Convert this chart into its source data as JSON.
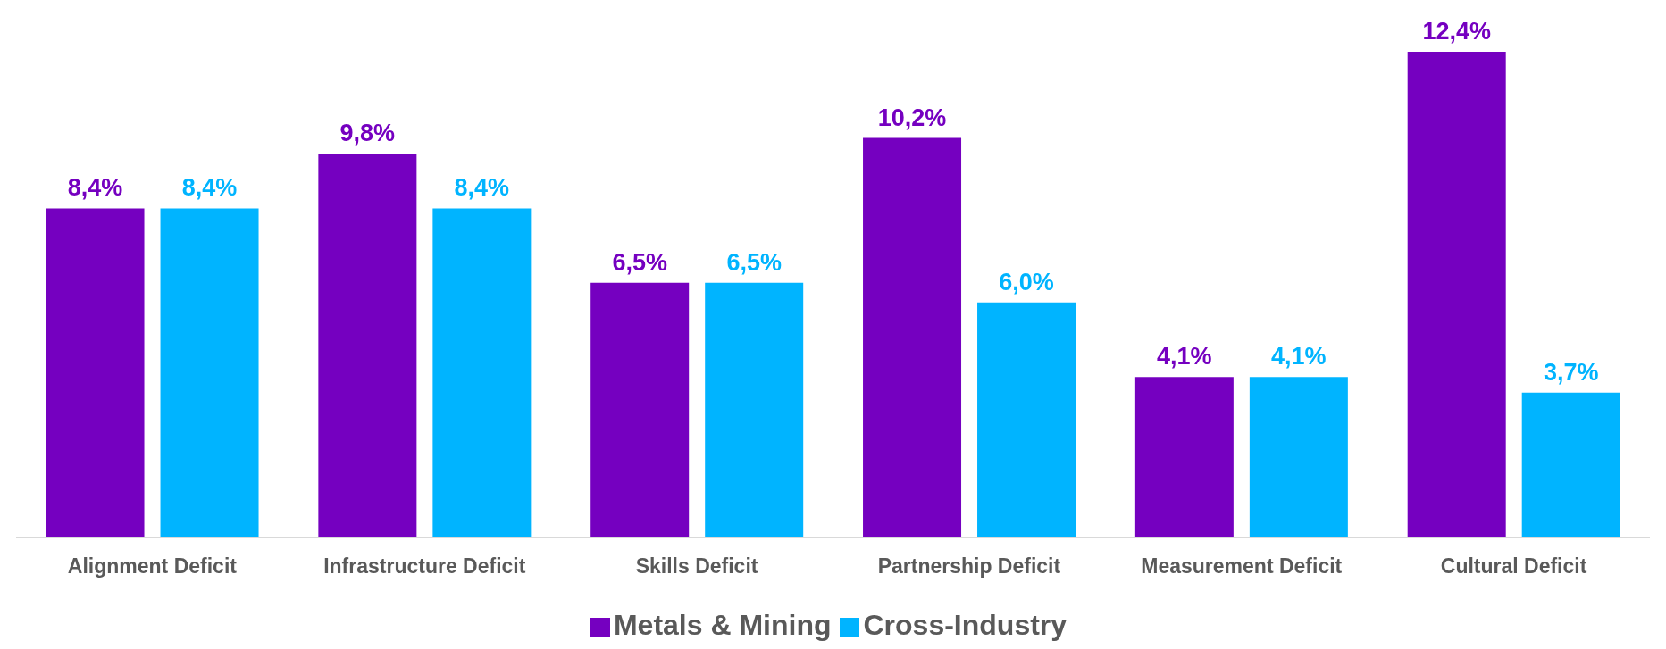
{
  "chart_data": {
    "type": "bar",
    "categories": [
      "Alignment Deficit",
      "Infrastructure Deficit",
      "Skills Deficit",
      "Partnership Deficit",
      "Measurement Deficit",
      "Cultural Deficit"
    ],
    "series": [
      {
        "name": "Metals & Mining",
        "color": "#7500c0",
        "values": [
          8.4,
          9.8,
          6.5,
          10.2,
          4.1,
          12.4
        ],
        "value_labels": [
          "8,4%",
          "9,8%",
          "6,5%",
          "10,2%",
          "4,1%",
          "12,4%"
        ]
      },
      {
        "name": "Cross-Industry",
        "color": "#00b4ff",
        "values": [
          8.4,
          8.4,
          6.5,
          6.0,
          4.1,
          3.7
        ],
        "value_labels": [
          "8,4%",
          "8,4%",
          "6,5%",
          "6,0%",
          "4,1%",
          "3,7%"
        ]
      }
    ],
    "legend": "bottom",
    "grid": false
  }
}
